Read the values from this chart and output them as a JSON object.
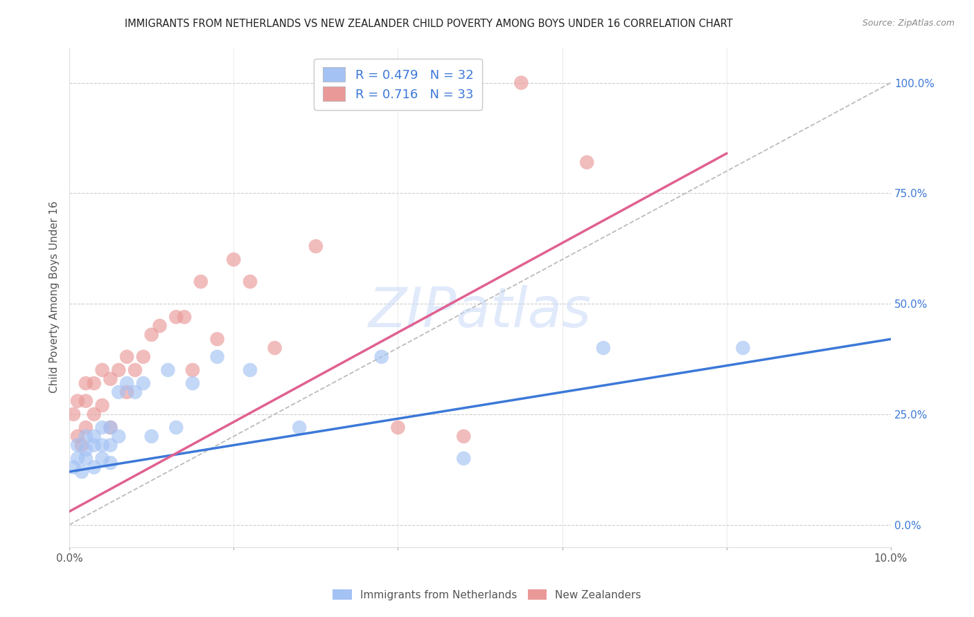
{
  "title": "IMMIGRANTS FROM NETHERLANDS VS NEW ZEALANDER CHILD POVERTY AMONG BOYS UNDER 16 CORRELATION CHART",
  "source": "Source: ZipAtlas.com",
  "ylabel": "Child Poverty Among Boys Under 16",
  "xlim": [
    0.0,
    0.1
  ],
  "ylim": [
    -0.05,
    1.08
  ],
  "plot_ylim": [
    0.0,
    1.0
  ],
  "xticks": [
    0.0,
    0.02,
    0.04,
    0.06,
    0.08,
    0.1
  ],
  "yticks": [
    0.0,
    0.25,
    0.5,
    0.75,
    1.0
  ],
  "ytick_labels": [
    "0.0%",
    "25.0%",
    "50.0%",
    "75.0%",
    "100.0%"
  ],
  "blue_color": "#a4c2f4",
  "pink_color": "#ea9999",
  "blue_line_color": "#3c78d8",
  "pink_line_color": "#e06090",
  "watermark_color": "#c9daf8",
  "watermark": "ZIPatlas",
  "blue_scatter_x": [
    0.0005,
    0.001,
    0.001,
    0.0015,
    0.002,
    0.002,
    0.002,
    0.003,
    0.003,
    0.003,
    0.004,
    0.004,
    0.004,
    0.005,
    0.005,
    0.005,
    0.006,
    0.006,
    0.007,
    0.008,
    0.009,
    0.01,
    0.012,
    0.013,
    0.015,
    0.018,
    0.022,
    0.028,
    0.038,
    0.048,
    0.065,
    0.082
  ],
  "blue_scatter_y": [
    0.13,
    0.15,
    0.18,
    0.12,
    0.15,
    0.17,
    0.2,
    0.13,
    0.18,
    0.2,
    0.15,
    0.18,
    0.22,
    0.14,
    0.18,
    0.22,
    0.2,
    0.3,
    0.32,
    0.3,
    0.32,
    0.2,
    0.35,
    0.22,
    0.32,
    0.38,
    0.35,
    0.22,
    0.38,
    0.15,
    0.4,
    0.4
  ],
  "pink_scatter_x": [
    0.0005,
    0.001,
    0.001,
    0.0015,
    0.002,
    0.002,
    0.002,
    0.003,
    0.003,
    0.004,
    0.004,
    0.005,
    0.005,
    0.006,
    0.007,
    0.007,
    0.008,
    0.009,
    0.01,
    0.011,
    0.013,
    0.014,
    0.015,
    0.016,
    0.018,
    0.02,
    0.022,
    0.025,
    0.03,
    0.04,
    0.048,
    0.055,
    0.063
  ],
  "pink_scatter_y": [
    0.25,
    0.2,
    0.28,
    0.18,
    0.22,
    0.28,
    0.32,
    0.25,
    0.32,
    0.27,
    0.35,
    0.22,
    0.33,
    0.35,
    0.3,
    0.38,
    0.35,
    0.38,
    0.43,
    0.45,
    0.47,
    0.47,
    0.35,
    0.55,
    0.42,
    0.6,
    0.55,
    0.4,
    0.63,
    0.22,
    0.2,
    1.0,
    0.82
  ],
  "blue_trend_x": [
    0.0,
    0.1
  ],
  "blue_trend_y": [
    0.12,
    0.42
  ],
  "pink_trend_x": [
    0.0,
    0.08
  ],
  "pink_trend_y": [
    0.03,
    0.84
  ],
  "ref_line_x": [
    0.0,
    0.1
  ],
  "ref_line_y": [
    0.0,
    1.0
  ],
  "legend_labels": [
    "Immigrants from Netherlands",
    "New Zealanders"
  ],
  "legend_r1": "R = 0.479   N = 32",
  "legend_r2": "R = 0.716   N = 33"
}
